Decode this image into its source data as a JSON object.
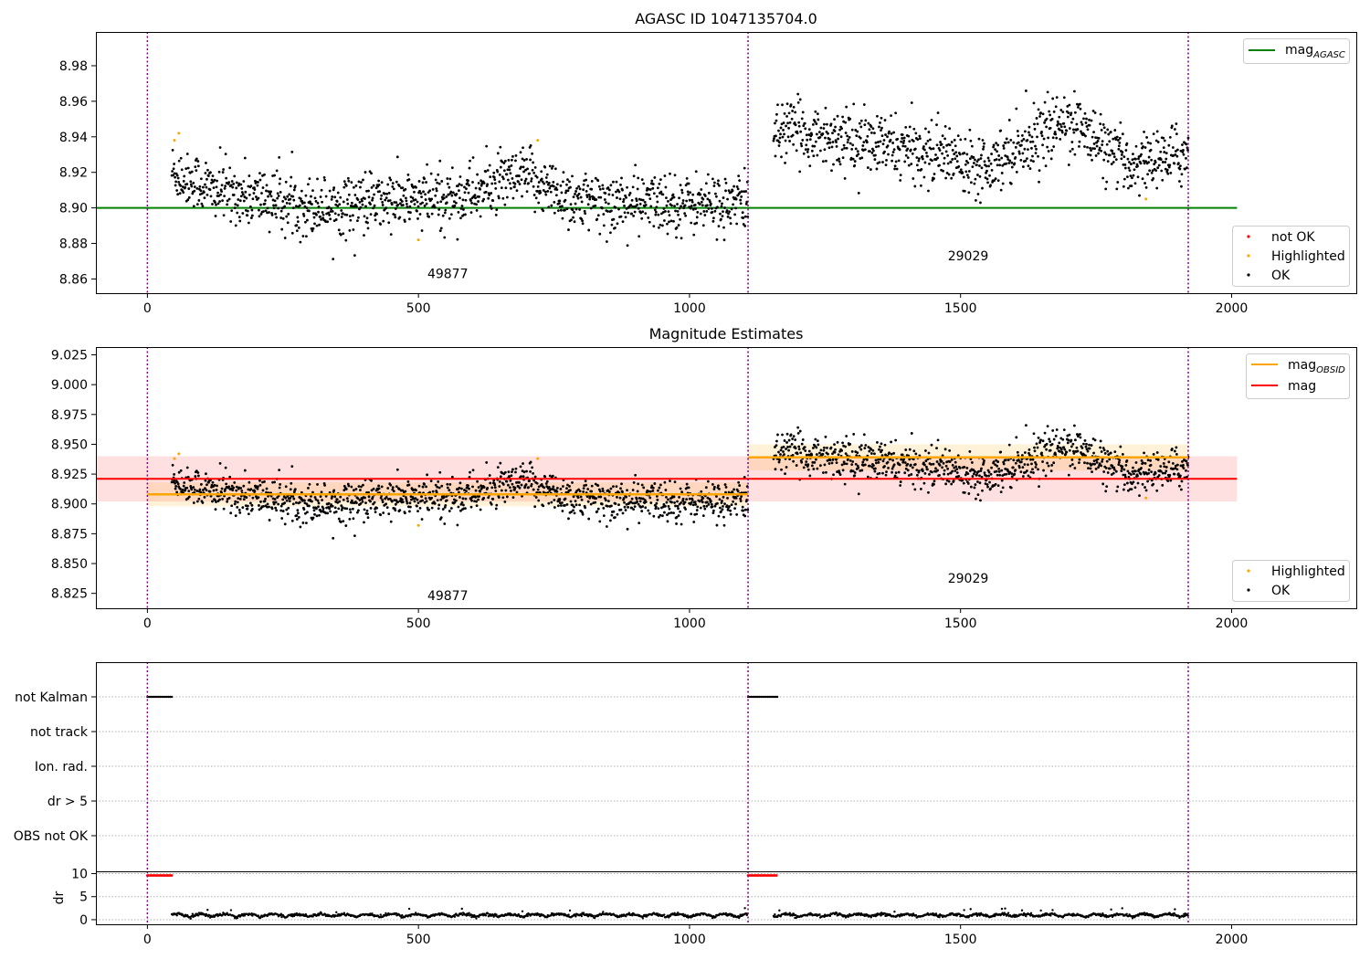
{
  "colors": {
    "ok": "#000000",
    "highlighted": "#ffa500",
    "not_ok": "#ff0000",
    "agasc_line": "#008000",
    "obsid_line": "#ffa500",
    "mag_line": "#ff0000",
    "obsid_band": "#ffa500",
    "mag_band": "#ff0000",
    "vline": "#800080",
    "grid": "#b0b0b0"
  },
  "chart_data": [
    {
      "type": "scatter",
      "title": "AGASC ID 1047135704.0",
      "xlim": [
        -95,
        2230
      ],
      "ylim": [
        8.852,
        8.999
      ],
      "xticks": [
        0,
        500,
        1000,
        1500,
        2000
      ],
      "yticks": [
        8.86,
        8.88,
        8.9,
        8.92,
        8.94,
        8.96,
        8.98
      ],
      "ytick_labels": [
        "8.86",
        "8.88",
        "8.90",
        "8.92",
        "8.94",
        "8.96",
        "8.98"
      ],
      "vlines": [
        0,
        1108,
        1920
      ],
      "obsids": [
        {
          "label": "49877",
          "x": 554,
          "y": 8.8605
        },
        {
          "label": "29029",
          "x": 1514,
          "y": 8.8705
        }
      ],
      "hlines": [
        {
          "name": "mag_AGASC",
          "y": 8.9,
          "x": [
            -95,
            2010
          ]
        }
      ],
      "segments": [
        {
          "x_start": 45,
          "x_end": 1108,
          "mean": 8.907,
          "spread": 0.011,
          "drift": [
            [
              45,
              8.92
            ],
            [
              120,
              8.91
            ],
            [
              300,
              8.901
            ],
            [
              550,
              8.905
            ],
            [
              700,
              8.917
            ],
            [
              800,
              8.903
            ],
            [
              1108,
              8.902
            ]
          ]
        },
        {
          "x_start": 1155,
          "x_end": 1920,
          "mean": 8.939,
          "spread": 0.011,
          "drift": [
            [
              1155,
              8.945
            ],
            [
              1300,
              8.938
            ],
            [
              1550,
              8.925
            ],
            [
              1700,
              8.95
            ],
            [
              1800,
              8.925
            ],
            [
              1920,
              8.93
            ]
          ]
        }
      ],
      "highlighted_points": [
        [
          50,
          8.938
        ],
        [
          58,
          8.942
        ],
        [
          500,
          8.882
        ],
        [
          720,
          8.938
        ],
        [
          1842,
          8.905
        ]
      ],
      "legend_upper": {
        "position": "upper right",
        "entries": [
          {
            "label": "mag",
            "sub": "AGASC"
          }
        ]
      },
      "legend_lower": {
        "position": "lower right",
        "entries": [
          "not OK",
          "Highlighted",
          "OK"
        ]
      }
    },
    {
      "type": "scatter",
      "title": "Magnitude Estimates",
      "xlim": [
        -95,
        2230
      ],
      "ylim": [
        8.8125,
        9.0315
      ],
      "xticks": [
        0,
        500,
        1000,
        1500,
        2000
      ],
      "yticks": [
        8.825,
        8.85,
        8.875,
        8.9,
        8.925,
        8.95,
        8.975,
        9.0,
        9.025
      ],
      "ytick_labels": [
        "8.825",
        "8.850",
        "8.875",
        "8.900",
        "8.925",
        "8.950",
        "8.975",
        "9.000",
        "9.025"
      ],
      "vlines": [
        0,
        1108,
        1920
      ],
      "obsids": [
        {
          "label": "49877",
          "x": 554,
          "y": 8.8195
        },
        {
          "label": "29029",
          "x": 1514,
          "y": 8.834
        }
      ],
      "mag": {
        "y": 8.921,
        "band": [
          8.902,
          8.94
        ],
        "x": [
          -95,
          2010
        ]
      },
      "mag_obsid": [
        {
          "x": [
            0,
            1108
          ],
          "y": 8.908,
          "band": [
            8.898,
            8.918
          ]
        },
        {
          "x": [
            1108,
            1920
          ],
          "y": 8.939,
          "band": [
            8.928,
            8.95
          ]
        }
      ],
      "legend_upper": {
        "position": "upper right",
        "entries": [
          {
            "label": "mag",
            "sub": "OBSID"
          },
          {
            "label": "mag"
          }
        ]
      },
      "legend_lower": {
        "position": "lower right",
        "entries": [
          "Highlighted",
          "OK"
        ]
      }
    },
    {
      "type": "scatter",
      "title": "",
      "xlim": [
        -95,
        2230
      ],
      "xticks": [
        0,
        500,
        1000,
        1500,
        2000
      ],
      "categories": [
        "not Kalman",
        "not track",
        "Ion. rad.",
        "dr > 5",
        "OBS not OK"
      ],
      "flags": [
        {
          "category": "not Kalman",
          "ranges": [
            [
              0,
              45
            ],
            [
              1108,
              1162
            ]
          ]
        }
      ],
      "vlines": [
        0,
        1108,
        1920
      ]
    },
    {
      "type": "scatter",
      "title": "",
      "ylabel": "dr",
      "xlim": [
        -95,
        2230
      ],
      "ylim": [
        -1,
        10.5
      ],
      "xticks": [
        0,
        500,
        1000,
        1500,
        2000
      ],
      "yticks": [
        0,
        5,
        10
      ],
      "ytick_labels": [
        "0",
        "5",
        "10"
      ],
      "capped_ranges": [
        [
          0,
          45
        ],
        [
          1108,
          1162
        ]
      ],
      "cap_value": 9.6,
      "dr_typical": [
        0.2,
        2.5
      ],
      "vlines": [
        0,
        1108,
        1920
      ]
    }
  ]
}
